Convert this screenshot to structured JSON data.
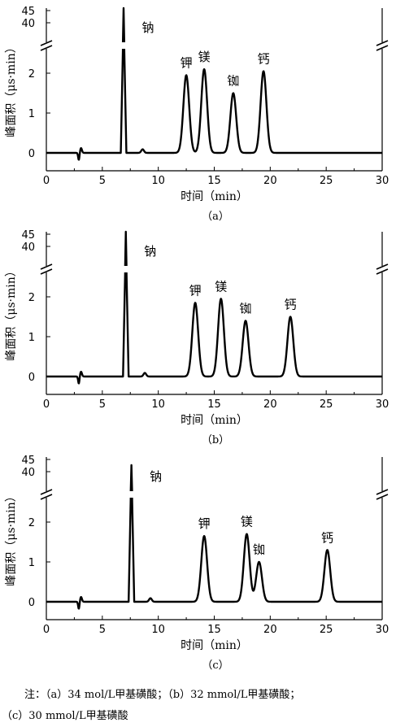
{
  "chart_data": [
    {
      "type": "line",
      "panel_label": "（a）",
      "xlabel": "时间（min）",
      "ylabel": "峰面积（μs·min）",
      "xlim": [
        0,
        30
      ],
      "x_ticks": [
        "0",
        "5",
        "10",
        "15",
        "20",
        "25",
        "30"
      ],
      "y_ticks_lower": [
        "0",
        "1",
        "2"
      ],
      "y_ticks_upper": [
        "40",
        "45"
      ],
      "y_axis_break": true,
      "grid": false,
      "peaks": [
        {
          "label": "钠",
          "x": 6.9,
          "y": 45
        },
        {
          "label": "钾",
          "x": 12.5,
          "y": 1.95
        },
        {
          "label": "镁",
          "x": 14.1,
          "y": 2.1
        },
        {
          "label": "铷",
          "x": 16.7,
          "y": 1.5
        },
        {
          "label": "钙",
          "x": 19.4,
          "y": 2.05
        }
      ]
    },
    {
      "type": "line",
      "panel_label": "（b）",
      "xlabel": "时间（min）",
      "ylabel": "峰面积（μs·min）",
      "xlim": [
        0,
        30
      ],
      "x_ticks": [
        "0",
        "5",
        "10",
        "15",
        "20",
        "25",
        "30"
      ],
      "y_ticks_lower": [
        "0",
        "1",
        "2"
      ],
      "y_ticks_upper": [
        "40",
        "45"
      ],
      "y_axis_break": true,
      "grid": false,
      "peaks": [
        {
          "label": "钠",
          "x": 7.1,
          "y": 45
        },
        {
          "label": "钾",
          "x": 13.3,
          "y": 1.85
        },
        {
          "label": "镁",
          "x": 15.6,
          "y": 1.95
        },
        {
          "label": "铷",
          "x": 17.8,
          "y": 1.4
        },
        {
          "label": "钙",
          "x": 21.8,
          "y": 1.5
        }
      ]
    },
    {
      "type": "line",
      "panel_label": "（c）",
      "xlabel": "时间（min）",
      "ylabel": "峰面积（μs·min）",
      "xlim": [
        0,
        30
      ],
      "x_ticks": [
        "0",
        "5",
        "10",
        "15",
        "20",
        "25",
        "30"
      ],
      "y_ticks_lower": [
        "0",
        "1",
        "2"
      ],
      "y_ticks_upper": [
        "40",
        "45"
      ],
      "y_axis_break": true,
      "grid": false,
      "peaks": [
        {
          "label": "钠",
          "x": 7.6,
          "y": 42
        },
        {
          "label": "钾",
          "x": 14.1,
          "y": 1.65
        },
        {
          "label": "镁",
          "x": 17.9,
          "y": 1.7
        },
        {
          "label": "铷",
          "x": 19.0,
          "y": 1.0
        },
        {
          "label": "钙",
          "x": 25.1,
          "y": 1.3
        }
      ]
    }
  ],
  "note": {
    "line1": "注：（a）34 mol/L甲基磺酸；（b）32 mmol/L甲基磺酸；",
    "line2": "（c）30 mmol/L甲基磺酸"
  }
}
